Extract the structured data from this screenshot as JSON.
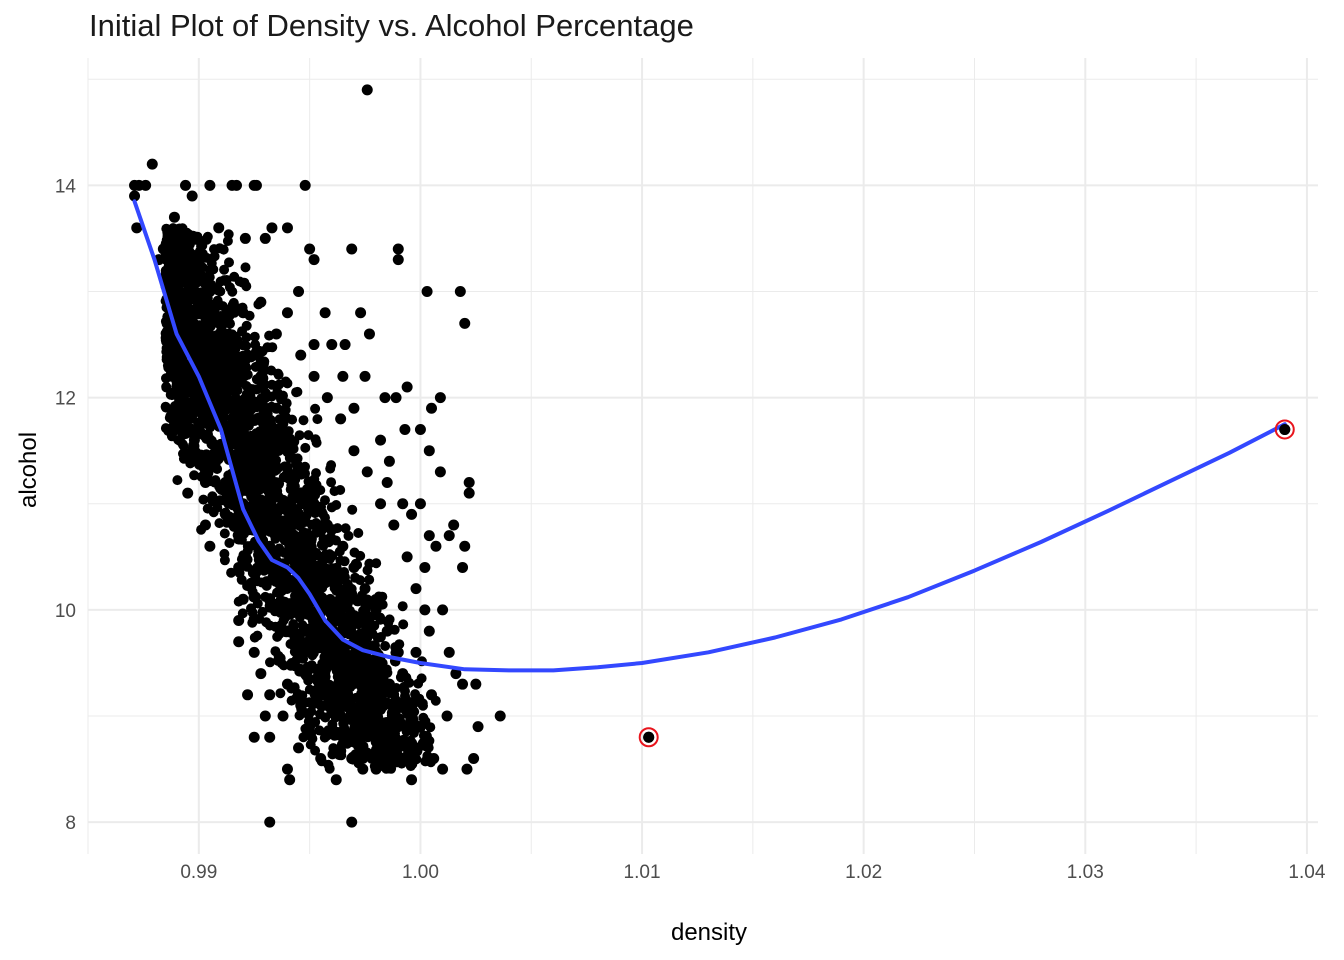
{
  "chart_data": {
    "type": "scatter",
    "title": "Initial Plot of Density vs. Alcohol Percentage",
    "xlabel": "density",
    "ylabel": "alcohol",
    "xlim": [
      0.985,
      1.0405
    ],
    "ylim": [
      7.7,
      15.2
    ],
    "x_ticks": [
      0.99,
      1.0,
      1.01,
      1.02,
      1.03,
      1.04
    ],
    "x_tick_labels": [
      "0.99",
      "1.00",
      "1.01",
      "1.02",
      "1.03",
      "1.04"
    ],
    "y_ticks": [
      8,
      10,
      12,
      14
    ],
    "y_tick_labels": [
      "8",
      "10",
      "12",
      "14"
    ],
    "grid": true,
    "legend": "none",
    "colors": {
      "points": "#000000",
      "smooth": "#3348ff",
      "highlight": "#e8141c",
      "grid": "#ebebeb"
    },
    "series": [
      {
        "type": "scatter",
        "note": "representative subset of the dense point cloud",
        "points": [
          [
            0.9871,
            14.0
          ],
          [
            0.9871,
            13.9
          ],
          [
            0.9873,
            14.0
          ],
          [
            0.9872,
            13.6
          ],
          [
            0.9879,
            14.2
          ],
          [
            0.9876,
            14.0
          ],
          [
            0.9882,
            13.3
          ],
          [
            0.9884,
            13.4
          ],
          [
            0.9889,
            13.7
          ],
          [
            0.9894,
            14.0
          ],
          [
            0.9897,
            13.9
          ],
          [
            0.9905,
            14.0
          ],
          [
            0.9909,
            13.6
          ],
          [
            0.9915,
            14.0
          ],
          [
            0.9917,
            14.0
          ],
          [
            0.9925,
            14.0
          ],
          [
            0.9926,
            14.0
          ],
          [
            0.9933,
            13.6
          ],
          [
            0.9948,
            14.0
          ],
          [
            0.994,
            13.6
          ],
          [
            0.993,
            13.5
          ],
          [
            0.9921,
            13.5
          ],
          [
            0.995,
            13.4
          ],
          [
            0.9952,
            13.3
          ],
          [
            0.9969,
            13.4
          ],
          [
            0.999,
            13.4
          ],
          [
            0.999,
            13.3
          ],
          [
            1.0003,
            13.0
          ],
          [
            1.0018,
            13.0
          ],
          [
            1.002,
            12.7
          ],
          [
            0.9977,
            12.6
          ],
          [
            0.9973,
            12.8
          ],
          [
            0.9966,
            12.5
          ],
          [
            0.9957,
            12.8
          ],
          [
            0.9952,
            12.5
          ],
          [
            0.9975,
            12.2
          ],
          [
            0.9984,
            12.0
          ],
          [
            0.9989,
            12.0
          ],
          [
            0.9994,
            12.1
          ],
          [
            1.0005,
            11.9
          ],
          [
            1.0009,
            12.0
          ],
          [
            0.9993,
            11.7
          ],
          [
            1.0,
            11.7
          ],
          [
            1.0004,
            11.5
          ],
          [
            1.0009,
            11.3
          ],
          [
            1.0013,
            10.7
          ],
          [
            1.0015,
            10.8
          ],
          [
            1.0022,
            11.1
          ],
          [
            1.0022,
            11.2
          ],
          [
            1.002,
            10.6
          ],
          [
            1.0019,
            10.4
          ],
          [
            1.0007,
            10.6
          ],
          [
            1.0002,
            10.4
          ],
          [
            1.0002,
            10.0
          ],
          [
            1.001,
            10.0
          ],
          [
            1.0013,
            9.6
          ],
          [
            1.0019,
            9.3
          ],
          [
            1.0025,
            9.3
          ],
          [
            1.0036,
            9.0
          ],
          [
            1.0026,
            8.9
          ],
          [
            1.0024,
            8.6
          ],
          [
            1.0021,
            8.5
          ],
          [
            1.001,
            8.5
          ],
          [
            1.0006,
            8.6
          ],
          [
            0.9996,
            8.4
          ],
          [
            0.9992,
            8.6
          ],
          [
            0.998,
            8.5
          ],
          [
            0.9974,
            8.5
          ],
          [
            0.9969,
            8.6
          ],
          [
            0.9962,
            8.4
          ],
          [
            0.9955,
            8.6
          ],
          [
            0.9941,
            8.4
          ],
          [
            0.994,
            8.5
          ],
          [
            0.9932,
            8.8
          ],
          [
            0.9925,
            8.8
          ],
          [
            0.9945,
            8.7
          ],
          [
            0.9969,
            8.0
          ],
          [
            0.9932,
            8.0
          ],
          [
            0.9976,
            14.9
          ],
          [
            0.9945,
            13.0
          ],
          [
            0.994,
            12.8
          ],
          [
            0.9935,
            12.6
          ],
          [
            0.9928,
            12.9
          ],
          [
            0.992,
            12.8
          ],
          [
            0.9912,
            12.6
          ],
          [
            0.9905,
            13.0
          ],
          [
            0.9898,
            12.8
          ],
          [
            0.989,
            13.1
          ],
          [
            0.9886,
            12.7
          ],
          [
            0.9888,
            12.2
          ],
          [
            0.9893,
            12.0
          ],
          [
            0.989,
            11.7
          ],
          [
            0.9898,
            11.6
          ],
          [
            0.9903,
            11.2
          ],
          [
            0.9895,
            11.1
          ],
          [
            0.9903,
            10.8
          ],
          [
            0.9905,
            10.6
          ],
          [
            0.9912,
            10.9
          ],
          [
            0.9918,
            10.4
          ],
          [
            0.9918,
            9.9
          ],
          [
            0.9918,
            9.7
          ],
          [
            0.992,
            10.1
          ],
          [
            0.9925,
            9.6
          ],
          [
            0.9928,
            9.4
          ],
          [
            0.9922,
            9.2
          ],
          [
            0.993,
            9.0
          ],
          [
            0.9932,
            9.2
          ],
          [
            0.994,
            9.3
          ],
          [
            0.9938,
            9.0
          ],
          [
            0.9946,
            9.1
          ],
          [
            0.995,
            8.9
          ],
          [
            0.9956,
            9.2
          ],
          [
            0.9962,
            9.0
          ],
          [
            0.9966,
            8.8
          ],
          [
            0.9972,
            8.9
          ],
          [
            0.9978,
            9.1
          ],
          [
            0.9985,
            8.8
          ],
          [
            0.999,
            8.9
          ],
          [
            0.9995,
            9.1
          ],
          [
            1.0,
            8.9
          ],
          [
            1.0005,
            9.2
          ],
          [
            1.0012,
            9.0
          ],
          [
            1.0016,
            9.4
          ],
          [
            0.999,
            9.6
          ],
          [
            0.9985,
            9.8
          ],
          [
            0.998,
            10.0
          ],
          [
            0.9975,
            10.2
          ],
          [
            0.997,
            10.4
          ],
          [
            0.9965,
            10.6
          ],
          [
            0.9958,
            10.8
          ],
          [
            0.9952,
            11.0
          ],
          [
            0.9946,
            11.3
          ],
          [
            0.994,
            11.6
          ],
          [
            0.9935,
            11.9
          ],
          [
            0.9928,
            12.2
          ],
          [
            0.9922,
            12.4
          ],
          [
            0.9916,
            12.1
          ],
          [
            0.991,
            11.8
          ],
          [
            0.9908,
            11.5
          ],
          [
            0.9912,
            11.2
          ],
          [
            0.992,
            11.0
          ],
          [
            0.9926,
            10.8
          ],
          [
            0.9932,
            10.6
          ],
          [
            0.9938,
            10.4
          ],
          [
            0.9944,
            10.2
          ],
          [
            0.995,
            10.0
          ],
          [
            0.9956,
            9.8
          ],
          [
            0.9962,
            9.6
          ],
          [
            0.9968,
            9.4
          ],
          [
            0.9974,
            9.7
          ],
          [
            0.998,
            9.5
          ],
          [
            0.9986,
            9.3
          ],
          [
            0.9992,
            9.4
          ],
          [
            0.9998,
            9.6
          ],
          [
            1.0004,
            9.8
          ],
          [
            0.9998,
            10.2
          ],
          [
            0.9994,
            10.5
          ],
          [
            0.9988,
            10.8
          ],
          [
            0.9982,
            11.0
          ],
          [
            0.9976,
            11.3
          ],
          [
            0.997,
            11.5
          ],
          [
            0.9964,
            11.8
          ],
          [
            0.9958,
            12.0
          ],
          [
            0.9952,
            12.2
          ],
          [
            0.9946,
            12.4
          ],
          [
            0.996,
            12.5
          ],
          [
            0.9965,
            12.2
          ],
          [
            0.997,
            11.9
          ],
          [
            0.9982,
            11.6
          ],
          [
            0.9986,
            11.4
          ],
          [
            0.9992,
            11.0
          ],
          [
            0.9996,
            10.9
          ],
          [
            1.0,
            11.0
          ],
          [
            1.0004,
            10.7
          ],
          [
            0.9985,
            11.2
          ],
          [
            1.0103,
            8.8
          ],
          [
            1.039,
            11.7
          ]
        ]
      },
      {
        "type": "line",
        "note": "smoothed trend",
        "points": [
          [
            0.9871,
            13.85
          ],
          [
            0.988,
            13.3
          ],
          [
            0.989,
            12.6
          ],
          [
            0.99,
            12.2
          ],
          [
            0.991,
            11.7
          ],
          [
            0.992,
            10.95
          ],
          [
            0.9927,
            10.65
          ],
          [
            0.9933,
            10.47
          ],
          [
            0.994,
            10.4
          ],
          [
            0.9945,
            10.3
          ],
          [
            0.995,
            10.15
          ],
          [
            0.9957,
            9.9
          ],
          [
            0.9965,
            9.72
          ],
          [
            0.9974,
            9.62
          ],
          [
            0.9985,
            9.56
          ],
          [
            1.0,
            9.5
          ],
          [
            1.002,
            9.44
          ],
          [
            1.004,
            9.43
          ],
          [
            1.006,
            9.43
          ],
          [
            1.008,
            9.46
          ],
          [
            1.01,
            9.5
          ],
          [
            1.013,
            9.6
          ],
          [
            1.016,
            9.74
          ],
          [
            1.019,
            9.91
          ],
          [
            1.022,
            10.12
          ],
          [
            1.025,
            10.37
          ],
          [
            1.028,
            10.64
          ],
          [
            1.031,
            10.93
          ],
          [
            1.034,
            11.23
          ],
          [
            1.0365,
            11.48
          ],
          [
            1.039,
            11.75
          ]
        ]
      },
      {
        "type": "highlight",
        "note": "circled outliers",
        "points": [
          [
            1.0103,
            8.8
          ],
          [
            1.039,
            11.7
          ]
        ]
      }
    ]
  }
}
